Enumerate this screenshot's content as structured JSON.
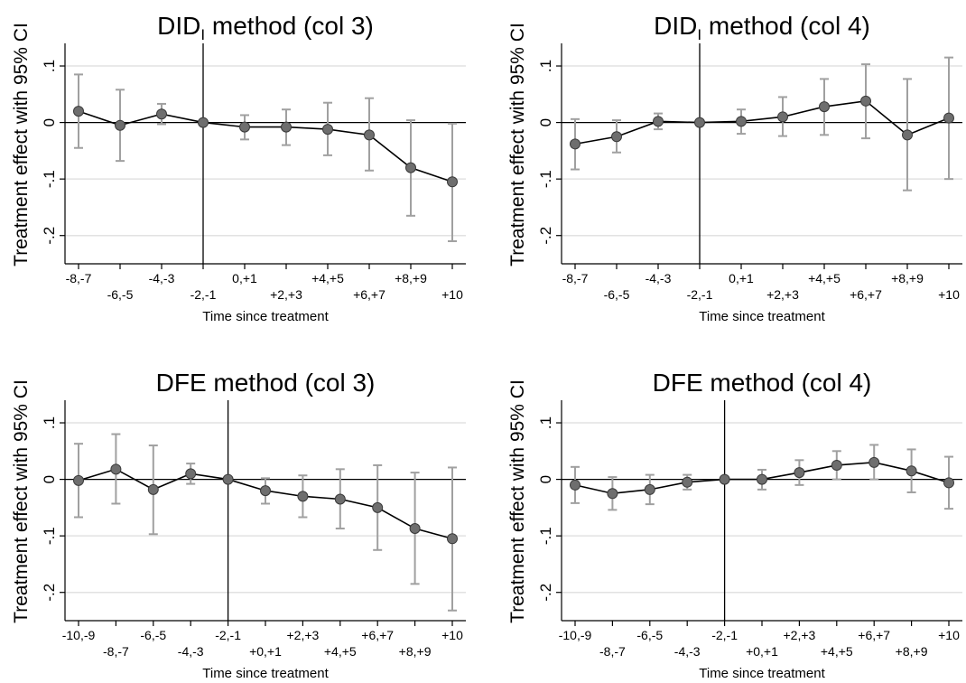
{
  "chart_data": [
    {
      "type": "scatter",
      "title_main": "DID",
      "title_sub": "I",
      "title_rest": " method (col 3)",
      "ylabel": "Treatment effect with 95% CI",
      "xlabel": "Time since treatment",
      "ylim": [
        -0.25,
        0.14
      ],
      "yticks": [
        0.1,
        0,
        -0.1,
        -0.2
      ],
      "ytick_labels": [
        ".1",
        "0",
        "-.1",
        "-.2"
      ],
      "grid": true,
      "reference_category": "-2,-1",
      "categories": [
        "-8,-7",
        "-6,-5",
        "-4,-3",
        "-2,-1",
        "0,+1",
        "+2,+3",
        "+4,+5",
        "+6,+7",
        "+8,+9",
        "+10"
      ],
      "estimates": [
        0.02,
        -0.005,
        0.015,
        0.0,
        -0.008,
        -0.008,
        -0.012,
        -0.022,
        -0.08,
        -0.105
      ],
      "ci_lower": [
        -0.045,
        -0.068,
        -0.003,
        0.0,
        -0.03,
        -0.04,
        -0.058,
        -0.085,
        -0.165,
        -0.21
      ],
      "ci_upper": [
        0.085,
        0.058,
        0.033,
        0.0,
        0.013,
        0.023,
        0.035,
        0.043,
        0.004,
        -0.002
      ]
    },
    {
      "type": "scatter",
      "title_main": "DID",
      "title_sub": "I",
      "title_rest": " method (col 4)",
      "ylabel": "Treatment effect with 95% CI",
      "xlabel": "Time since treatment",
      "ylim": [
        -0.25,
        0.14
      ],
      "yticks": [
        0.1,
        0,
        -0.1,
        -0.2
      ],
      "ytick_labels": [
        ".1",
        "0",
        "-.1",
        "-.2"
      ],
      "grid": true,
      "reference_category": "-2,-1",
      "categories": [
        "-8,-7",
        "-6,-5",
        "-4,-3",
        "-2,-1",
        "0,+1",
        "+2,+3",
        "+4,+5",
        "+6,+7",
        "+8,+9",
        "+10"
      ],
      "estimates": [
        -0.038,
        -0.025,
        0.002,
        0.0,
        0.002,
        0.01,
        0.028,
        0.038,
        -0.022,
        0.008
      ],
      "ci_lower": [
        -0.083,
        -0.053,
        -0.012,
        0.0,
        -0.02,
        -0.024,
        -0.022,
        -0.028,
        -0.12,
        -0.1
      ],
      "ci_upper": [
        0.006,
        0.004,
        0.016,
        0.0,
        0.023,
        0.045,
        0.077,
        0.103,
        0.077,
        0.115
      ]
    },
    {
      "type": "scatter",
      "title_main": "DFE method (col 3)",
      "title_sub": "",
      "title_rest": "",
      "ylabel": "Treatment effect with 95% CI",
      "xlabel": "Time since treatment",
      "ylim": [
        -0.25,
        0.14
      ],
      "yticks": [
        0.1,
        0,
        -0.1,
        -0.2
      ],
      "ytick_labels": [
        ".1",
        "0",
        "-.1",
        "-.2"
      ],
      "grid": true,
      "reference_category": "-2,-1",
      "categories": [
        "-10,-9",
        "-8,-7",
        "-6,-5",
        "-4,-3",
        "-2,-1",
        "+0,+1",
        "+2,+3",
        "+4,+5",
        "+6,+7",
        "+8,+9",
        "+10"
      ],
      "estimates": [
        -0.002,
        0.018,
        -0.018,
        0.01,
        0.0,
        -0.02,
        -0.03,
        -0.035,
        -0.05,
        -0.087,
        -0.105
      ],
      "ci_lower": [
        -0.067,
        -0.043,
        -0.097,
        -0.008,
        0.0,
        -0.043,
        -0.067,
        -0.087,
        -0.125,
        -0.185,
        -0.232
      ],
      "ci_upper": [
        0.063,
        0.08,
        0.06,
        0.028,
        0.0,
        0.002,
        0.007,
        0.018,
        0.025,
        0.012,
        0.021
      ]
    },
    {
      "type": "scatter",
      "title_main": "DFE method (col 4)",
      "title_sub": "",
      "title_rest": "",
      "ylabel": "Treatment effect with 95% CI",
      "xlabel": "Time since treatment",
      "ylim": [
        -0.25,
        0.14
      ],
      "yticks": [
        0.1,
        0,
        -0.1,
        -0.2
      ],
      "ytick_labels": [
        ".1",
        "0",
        "-.1",
        "-.2"
      ],
      "grid": true,
      "reference_category": "-2,-1",
      "categories": [
        "-10,-9",
        "-8,-7",
        "-6,-5",
        "-4,-3",
        "-2,-1",
        "+0,+1",
        "+2,+3",
        "+4,+5",
        "+6,+7",
        "+8,+9",
        "+10"
      ],
      "estimates": [
        -0.01,
        -0.025,
        -0.018,
        -0.005,
        0.0,
        0.0,
        0.012,
        0.025,
        0.03,
        0.015,
        -0.006
      ],
      "ci_lower": [
        -0.042,
        -0.054,
        -0.044,
        -0.018,
        0.0,
        -0.018,
        -0.01,
        0.0,
        0.0,
        -0.023,
        -0.052
      ],
      "ci_upper": [
        0.022,
        0.004,
        0.008,
        0.008,
        0.0,
        0.017,
        0.034,
        0.05,
        0.061,
        0.053,
        0.04
      ]
    }
  ],
  "colors": {
    "ci_bars": "#a0a0a0",
    "markers": "#6e6e6e",
    "gridlines": "#e2e2e2",
    "lines": "#000000"
  }
}
